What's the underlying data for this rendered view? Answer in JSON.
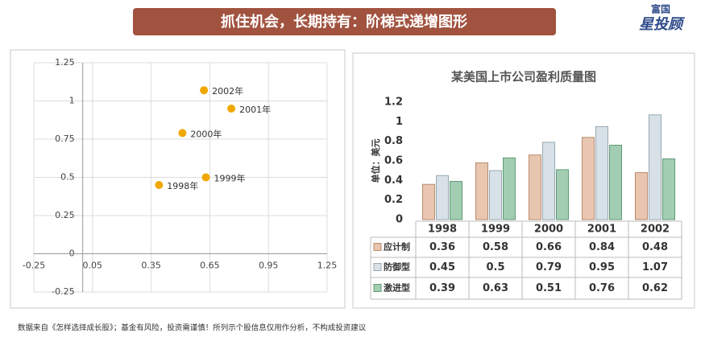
{
  "header": {
    "title": "抓住机会，长期持有：阶梯式递增图形",
    "logo_top": "富国",
    "logo_main": "星投顾"
  },
  "footer": "数据来自《怎样选择成长股》；基金有风险，投资需谨慎！所列示个股信息仅用作分析，不构成投资建议",
  "chart_data": [
    {
      "type": "scatter",
      "color": "#f0a800",
      "x": [
        0.39,
        0.63,
        0.51,
        0.76,
        0.62
      ],
      "values": [
        0.45,
        0.5,
        0.79,
        0.95,
        1.07
      ],
      "point_labels": [
        "1998年",
        "1999年",
        "2000年",
        "2001年",
        "2002年"
      ],
      "xlim": [
        -0.25,
        1.25
      ],
      "xticks": [
        -0.25,
        0.05,
        0.35,
        0.65,
        0.95,
        1.25
      ],
      "ylim": [
        -0.25,
        1.25
      ],
      "yticks": [
        -0.25,
        0,
        0.25,
        0.5,
        0.75,
        1,
        1.25
      ],
      "grid": true
    },
    {
      "type": "bar",
      "title": "某美国上市公司盈利质量图",
      "y_label": "单位：美元",
      "categories": [
        "1998",
        "1999",
        "2000",
        "2001",
        "2002"
      ],
      "series": [
        {
          "name": "应计制",
          "color": "#e8c6b0",
          "values": [
            0.36,
            0.58,
            0.66,
            0.84,
            0.48
          ]
        },
        {
          "name": "防御型",
          "color": "#d7e1e7",
          "values": [
            0.45,
            0.5,
            0.79,
            0.95,
            1.07
          ]
        },
        {
          "name": "激进型",
          "color": "#a3cdb2",
          "values": [
            0.39,
            0.63,
            0.51,
            0.76,
            0.62
          ]
        }
      ],
      "ylim": [
        0,
        1.2
      ],
      "yticks": [
        0,
        0.2,
        0.4,
        0.6,
        0.8,
        1,
        1.2
      ]
    }
  ]
}
